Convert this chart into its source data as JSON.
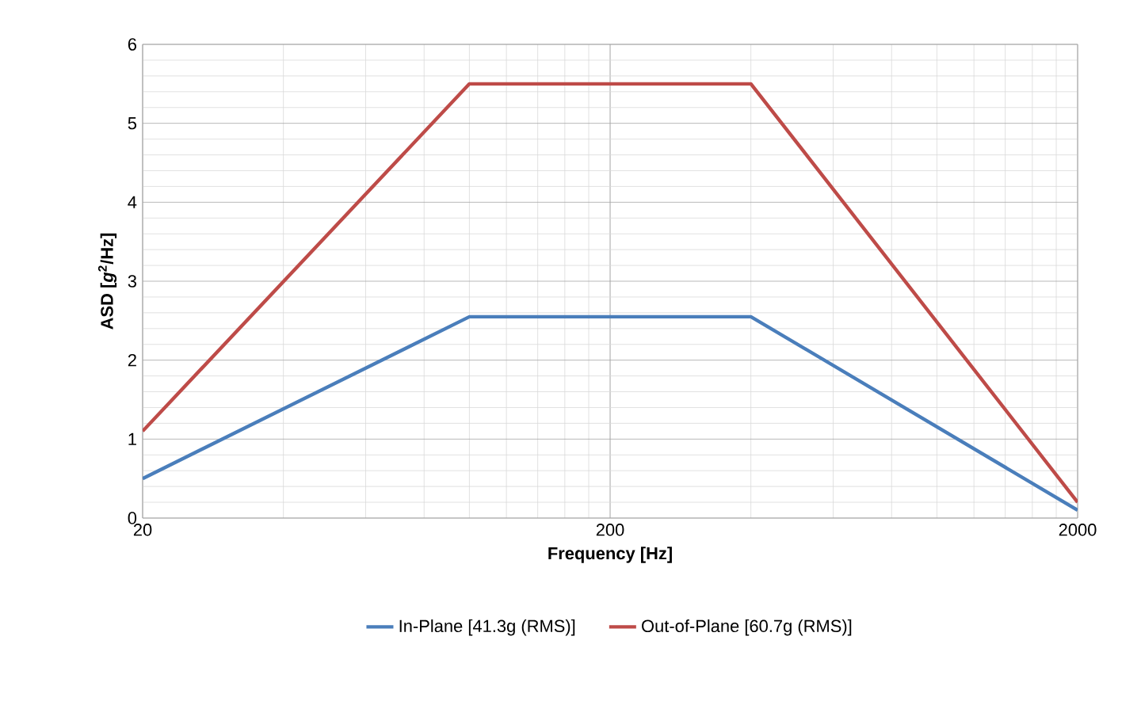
{
  "chart_data": {
    "type": "line",
    "xlabel": "Frequency [Hz]",
    "ylabel": "ASD [*g*$^{2}$/Hz]",
    "log": "x",
    "xlim": [
      20,
      2000
    ],
    "xticks": [
      20,
      200,
      2000
    ],
    "ylim": [
      0,
      6
    ],
    "yticks": [
      0,
      1,
      2,
      3,
      4,
      5,
      6
    ],
    "grid": true,
    "legend": "bottom",
    "marker": "none",
    "line_style": "solid",
    "series": [
      {
        "name": "In-Plane [41.3g (RMS)]",
        "color": "#4a7ebb",
        "x": [
          20,
          100,
          400,
          2000
        ],
        "values": [
          0.5,
          2.55,
          2.55,
          0.1
        ]
      },
      {
        "name": "Out-of-Plane [60.7g (RMS)]",
        "color": "#be4b48",
        "x": [
          20,
          100,
          400,
          2000
        ],
        "values": [
          1.1,
          5.5,
          5.5,
          0.2
        ]
      }
    ]
  }
}
